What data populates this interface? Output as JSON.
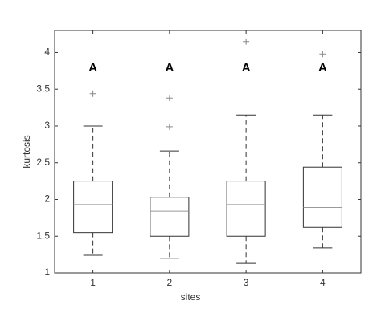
{
  "chart_data": {
    "type": "box",
    "x_label": "sites",
    "y_label": "kurtosis",
    "categories": [
      "1",
      "2",
      "3",
      "4"
    ],
    "boxes": [
      {
        "whislo": 1.24,
        "q1": 1.55,
        "med": 1.93,
        "q3": 2.25,
        "whishi": 3.0,
        "fliers": [
          3.44
        ]
      },
      {
        "whislo": 1.2,
        "q1": 1.5,
        "med": 1.84,
        "q3": 2.03,
        "whishi": 2.66,
        "fliers": [
          2.99,
          3.38
        ]
      },
      {
        "whislo": 1.13,
        "q1": 1.5,
        "med": 1.93,
        "q3": 2.25,
        "whishi": 3.15,
        "fliers": [
          4.15
        ]
      },
      {
        "whislo": 1.34,
        "q1": 1.62,
        "med": 1.89,
        "q3": 2.44,
        "whishi": 3.15,
        "fliers": [
          3.98
        ]
      }
    ],
    "annotations": [
      "A",
      "A",
      "A",
      "A"
    ],
    "color": "#333333",
    "median_color": "#999999",
    "flier_color": "#888888",
    "ylim": [
      1,
      4.3
    ],
    "yticks": [
      1,
      1.5,
      2,
      2.5,
      3,
      3.5,
      4
    ]
  }
}
